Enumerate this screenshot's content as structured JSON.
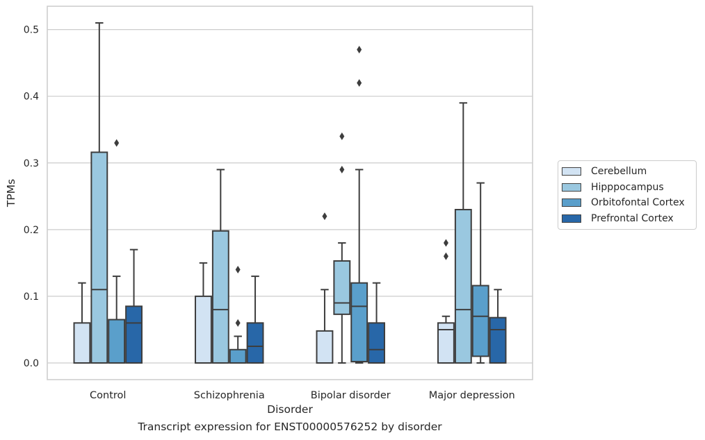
{
  "caption": "Transcript expression for ENST00000576252 by disorder",
  "chart_data": {
    "type": "box",
    "xlabel": "Disorder",
    "ylabel": "TPMs",
    "ylim": [
      -0.025,
      0.535
    ],
    "yticks": [
      0.0,
      0.1,
      0.2,
      0.3,
      0.4,
      0.5
    ],
    "ytick_labels": [
      "0.0",
      "0.1",
      "0.2",
      "0.3",
      "0.4",
      "0.5"
    ],
    "grid": "horizontal",
    "legend_position": "right",
    "categories": [
      "Control",
      "Schizophrenia",
      "Bipolar disorder",
      "Major depression"
    ],
    "series": [
      {
        "name": "Cerebellum",
        "color": "#d2e3f3",
        "boxes": [
          {
            "whislo": 0.0,
            "q1": 0.0,
            "med": 0.0,
            "q3": 0.06,
            "whishi": 0.12,
            "fliers": []
          },
          {
            "whislo": 0.0,
            "q1": 0.0,
            "med": 0.0,
            "q3": 0.1,
            "whishi": 0.15,
            "fliers": []
          },
          {
            "whislo": 0.0,
            "q1": 0.0,
            "med": 0.0,
            "q3": 0.048,
            "whishi": 0.11,
            "fliers": [
              0.22
            ]
          },
          {
            "whislo": 0.0,
            "q1": 0.0,
            "med": 0.05,
            "q3": 0.06,
            "whishi": 0.07,
            "fliers": [
              0.16,
              0.18
            ]
          }
        ]
      },
      {
        "name": "Hipppocampus",
        "color": "#9ac8e0",
        "boxes": [
          {
            "whislo": 0.0,
            "q1": 0.0,
            "med": 0.11,
            "q3": 0.316,
            "whishi": 0.51,
            "fliers": []
          },
          {
            "whislo": 0.0,
            "q1": 0.0,
            "med": 0.08,
            "q3": 0.198,
            "whishi": 0.29,
            "fliers": []
          },
          {
            "whislo": 0.0,
            "q1": 0.073,
            "med": 0.09,
            "q3": 0.153,
            "whishi": 0.18,
            "fliers": [
              0.29,
              0.34
            ]
          },
          {
            "whislo": 0.0,
            "q1": 0.0,
            "med": 0.08,
            "q3": 0.23,
            "whishi": 0.39,
            "fliers": []
          }
        ]
      },
      {
        "name": "Orbitofontal Cortex",
        "color": "#5a9fcb",
        "boxes": [
          {
            "whislo": 0.0,
            "q1": 0.0,
            "med": 0.0,
            "q3": 0.065,
            "whishi": 0.13,
            "fliers": [
              0.33
            ]
          },
          {
            "whislo": 0.0,
            "q1": 0.0,
            "med": 0.0,
            "q3": 0.02,
            "whishi": 0.04,
            "fliers": [
              0.06,
              0.14
            ]
          },
          {
            "whislo": 0.0,
            "q1": 0.002,
            "med": 0.085,
            "q3": 0.12,
            "whishi": 0.29,
            "fliers": [
              0.42,
              0.47
            ]
          },
          {
            "whislo": 0.0,
            "q1": 0.01,
            "med": 0.07,
            "q3": 0.116,
            "whishi": 0.27,
            "fliers": []
          }
        ]
      },
      {
        "name": "Prefrontal Cortex",
        "color": "#2867a8",
        "boxes": [
          {
            "whislo": 0.0,
            "q1": 0.0,
            "med": 0.06,
            "q3": 0.085,
            "whishi": 0.17,
            "fliers": []
          },
          {
            "whislo": 0.0,
            "q1": 0.0,
            "med": 0.025,
            "q3": 0.06,
            "whishi": 0.13,
            "fliers": []
          },
          {
            "whislo": 0.0,
            "q1": 0.0,
            "med": 0.02,
            "q3": 0.06,
            "whishi": 0.12,
            "fliers": []
          },
          {
            "whislo": 0.0,
            "q1": 0.0,
            "med": 0.05,
            "q3": 0.068,
            "whishi": 0.11,
            "fliers": []
          }
        ]
      }
    ]
  }
}
